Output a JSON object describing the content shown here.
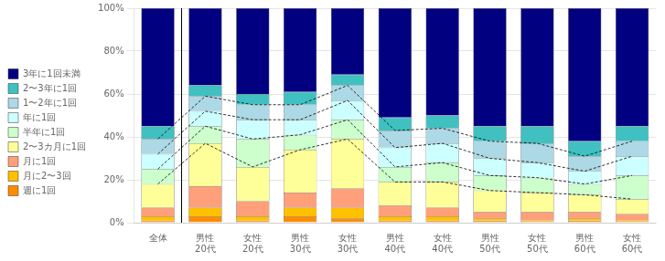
{
  "chart_data": {
    "type": "bar",
    "stacked": true,
    "categories": [
      "全体",
      "男性\n20代",
      "女性\n20代",
      "男性\n30代",
      "女性\n30代",
      "男性\n40代",
      "女性\n40代",
      "男性\n50代",
      "女性\n50代",
      "男性\n60代",
      "女性\n60代"
    ],
    "series": [
      {
        "name": "週に1回",
        "color": "#FF8C00",
        "values": [
          1,
          3,
          1,
          3,
          2,
          1,
          1,
          1,
          0,
          1,
          0
        ]
      },
      {
        "name": "月に2〜3回",
        "color": "#FFC000",
        "values": [
          2,
          4,
          2,
          4,
          5,
          2,
          2,
          1,
          1,
          1,
          1
        ]
      },
      {
        "name": "月に1回",
        "color": "#FFA07A",
        "values": [
          4,
          10,
          7,
          7,
          9,
          5,
          4,
          3,
          4,
          3,
          3
        ]
      },
      {
        "name": "2〜3カ月に1回",
        "color": "#FFFF99",
        "values": [
          11,
          20,
          16,
          20,
          23,
          11,
          12,
          10,
          9,
          8,
          7
        ]
      },
      {
        "name": "半年に1回",
        "color": "#CCFFCC",
        "values": [
          7,
          8,
          13,
          7,
          9,
          7,
          9,
          7,
          7,
          5,
          11
        ]
      },
      {
        "name": "年に1回",
        "color": "#CCFFFF",
        "values": [
          7,
          7,
          9,
          7,
          9,
          9,
          9,
          8,
          7,
          6,
          9
        ]
      },
      {
        "name": "1〜2年に1回",
        "color": "#ADD8E6",
        "values": [
          7,
          7,
          7,
          7,
          7,
          8,
          7,
          8,
          9,
          7,
          7
        ]
      },
      {
        "name": "2〜3年に1回",
        "color": "#40C0C0",
        "values": [
          6,
          5,
          5,
          6,
          5,
          6,
          6,
          7,
          8,
          7,
          7
        ]
      },
      {
        "name": "3年に1回未満",
        "color": "#000080",
        "values": [
          55,
          36,
          40,
          39,
          31,
          51,
          50,
          55,
          55,
          62,
          55
        ]
      }
    ],
    "ylim": [
      0,
      100
    ],
    "yticks": [
      {
        "value": 0,
        "label": "0%"
      },
      {
        "value": 20,
        "label": "20%"
      },
      {
        "value": 40,
        "label": "40%"
      },
      {
        "value": 60,
        "label": "60%"
      },
      {
        "value": 80,
        "label": "80%"
      },
      {
        "value": 100,
        "label": "100%"
      }
    ],
    "grid": true,
    "legend": "left"
  }
}
